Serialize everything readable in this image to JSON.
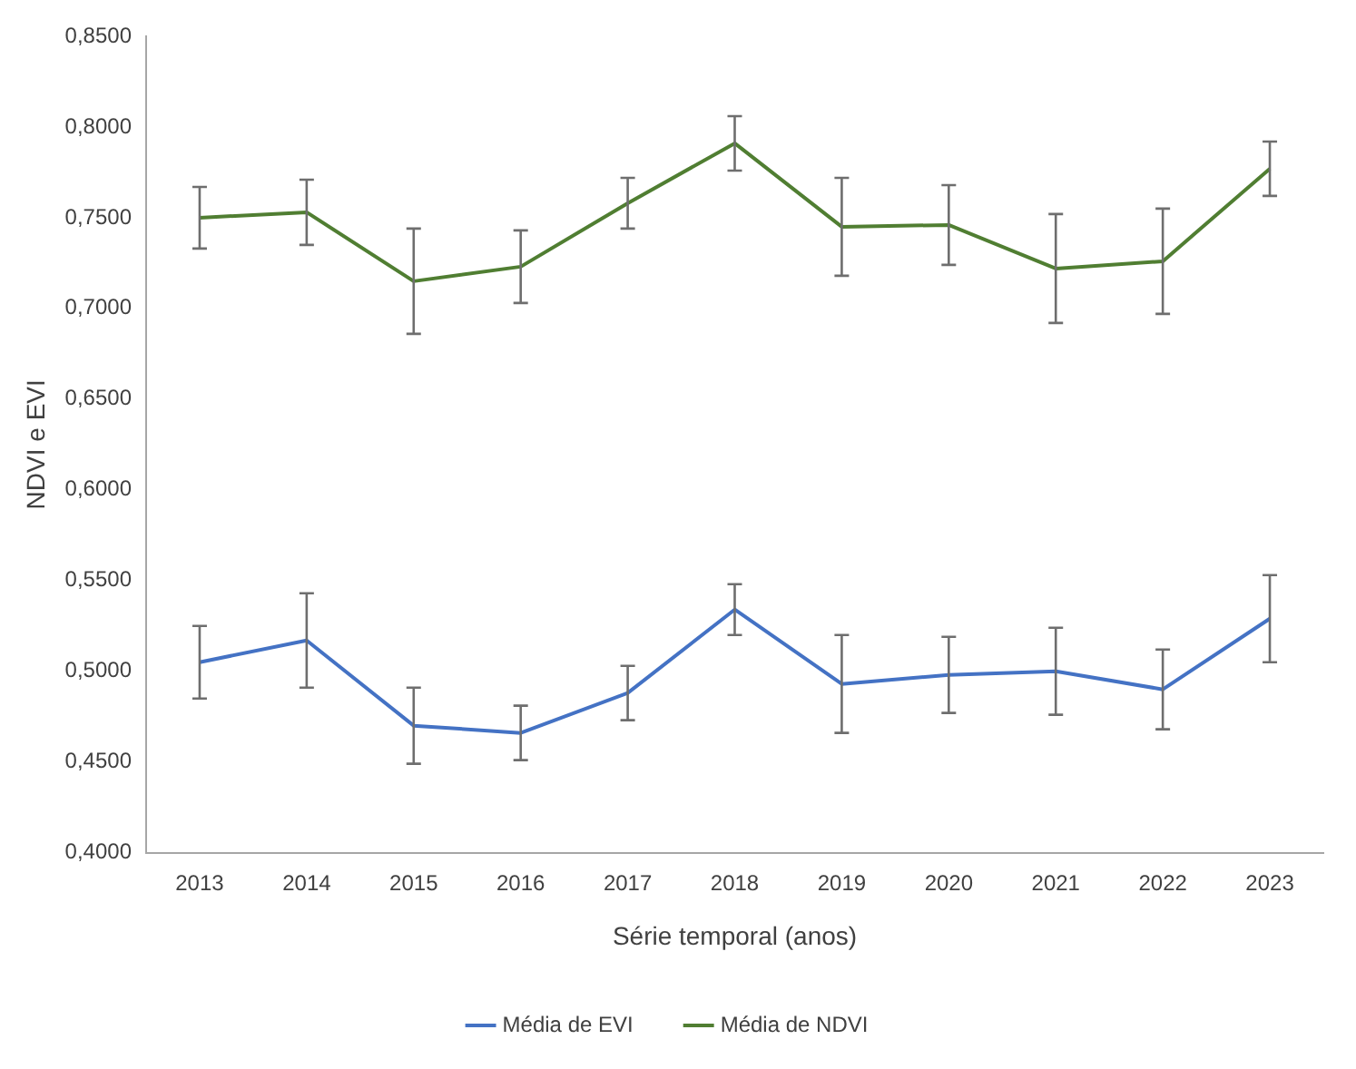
{
  "chart_data": {
    "type": "line",
    "xlabel": "Série temporal (anos)",
    "ylabel": "NDVI e EVI",
    "categories": [
      "2013",
      "2014",
      "2015",
      "2016",
      "2017",
      "2018",
      "2019",
      "2020",
      "2021",
      "2022",
      "2023"
    ],
    "series": [
      {
        "name": "Média de EVI",
        "color": "#4472c4",
        "values": [
          0.505,
          0.517,
          0.47,
          0.466,
          0.488,
          0.534,
          0.493,
          0.498,
          0.5,
          0.49,
          0.529
        ],
        "errors": [
          0.02,
          0.026,
          0.021,
          0.015,
          0.015,
          0.014,
          0.027,
          0.021,
          0.024,
          0.022,
          0.024
        ]
      },
      {
        "name": "Média de NDVI",
        "color": "#507e32",
        "values": [
          0.75,
          0.753,
          0.715,
          0.723,
          0.758,
          0.791,
          0.745,
          0.746,
          0.722,
          0.726,
          0.777
        ],
        "errors": [
          0.017,
          0.018,
          0.029,
          0.02,
          0.014,
          0.015,
          0.027,
          0.022,
          0.03,
          0.029,
          0.015
        ]
      }
    ],
    "ylim": [
      0.4,
      0.85
    ],
    "yticks": [
      {
        "value": 0.4,
        "label": "0,4000"
      },
      {
        "value": 0.45,
        "label": "0,4500"
      },
      {
        "value": 0.5,
        "label": "0,5000"
      },
      {
        "value": 0.55,
        "label": "0,5500"
      },
      {
        "value": 0.6,
        "label": "0,6000"
      },
      {
        "value": 0.65,
        "label": "0,6500"
      },
      {
        "value": 0.7,
        "label": "0,7000"
      },
      {
        "value": 0.75,
        "label": "0,7500"
      },
      {
        "value": 0.8,
        "label": "0,8000"
      },
      {
        "value": 0.85,
        "label": "0,8500"
      }
    ],
    "grid": false,
    "legend": "bottom",
    "marker": "none",
    "line_style": "solid"
  }
}
